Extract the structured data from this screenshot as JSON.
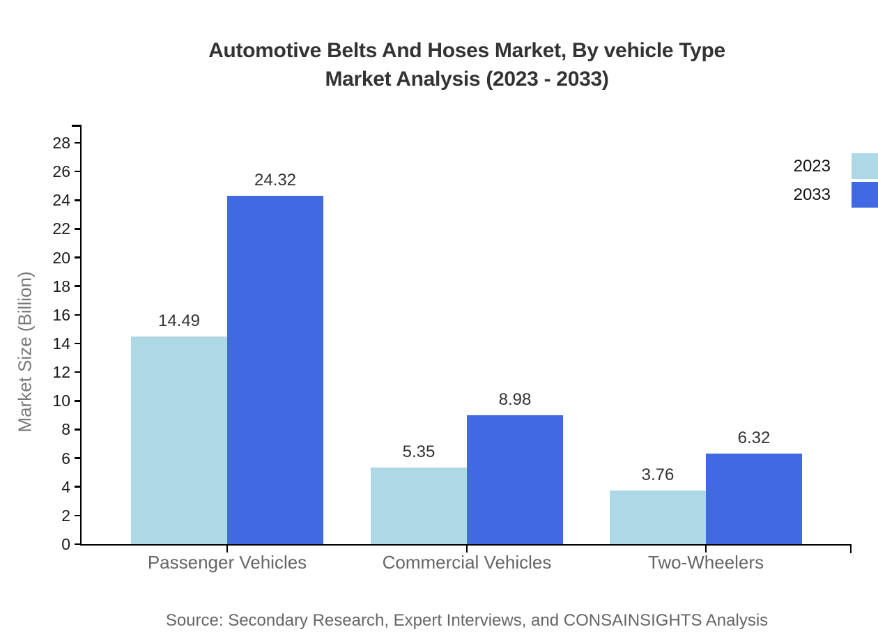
{
  "title": {
    "line1": "Automotive Belts And Hoses Market, By vehicle Type",
    "line2": "Market Analysis (2023 - 2033)"
  },
  "source": "Source: Secondary Research, Expert Interviews, and CONSAINSIGHTS Analysis",
  "legend": {
    "items": [
      {
        "label": "2023",
        "color": "#ADD8E6"
      },
      {
        "label": "2033",
        "color": "#4169E1"
      }
    ]
  },
  "chart_data": {
    "type": "bar",
    "title": "Automotive Belts And Hoses Market, By vehicle Type Market Analysis (2023 - 2033)",
    "categories": [
      "Passenger Vehicles",
      "Commercial Vehicles",
      "Two-Wheelers"
    ],
    "series": [
      {
        "name": "2023",
        "color": "#ADD8E6",
        "values": [
          14.49,
          5.35,
          3.76
        ]
      },
      {
        "name": "2033",
        "color": "#4169E1",
        "values": [
          24.32,
          8.98,
          6.32
        ]
      }
    ],
    "xlabel": "",
    "ylabel": "Market Size (Billion)",
    "ylim": [
      0,
      29
    ],
    "yticks": [
      0,
      2,
      4,
      6,
      8,
      10,
      12,
      14,
      16,
      18,
      20,
      22,
      24,
      26,
      28
    ],
    "grid": false,
    "legend_position": "top-right",
    "value_labels": true,
    "value_label_format": "0.00"
  }
}
